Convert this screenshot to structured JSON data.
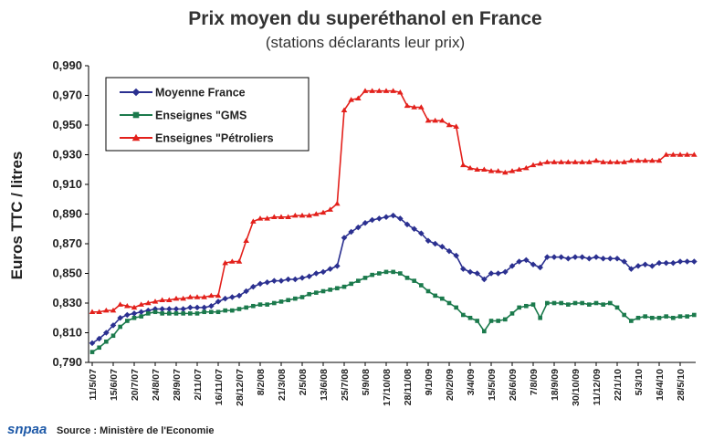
{
  "chart_data": {
    "type": "line",
    "title": "Prix moyen du superéthanol en France",
    "subtitle": "(stations déclarants leur prix)",
    "ylabel": "Euros TTC / litres",
    "source": "Source : Ministère de l'Economie",
    "logo": "snpaa",
    "categories": [
      "11/5/07",
      null,
      null,
      "15/6/07",
      null,
      null,
      "20/7/07",
      null,
      null,
      "24/8/07",
      null,
      null,
      "28/9/07",
      null,
      null,
      "2/11/07",
      null,
      null,
      "16/11/07",
      null,
      null,
      "28/12/07",
      null,
      null,
      "8/2/08",
      null,
      null,
      "21/3/08",
      null,
      null,
      "2/5/08",
      null,
      null,
      "13/6/08",
      null,
      null,
      "25/7/08",
      null,
      null,
      "5/9/08",
      null,
      null,
      "17/10/08",
      null,
      null,
      "28/11/08",
      null,
      null,
      "9/1/09",
      null,
      null,
      "20/2/09",
      null,
      null,
      "3/4/09",
      null,
      null,
      "15/5/09",
      null,
      null,
      "26/6/09",
      null,
      null,
      "7/8/09",
      null,
      null,
      "18/9/09",
      null,
      null,
      "30/10/09",
      null,
      null,
      "11/12/09",
      null,
      null,
      "22/1/10",
      null,
      null,
      "5/3/10",
      null,
      null,
      "16/4/10",
      null,
      null,
      "28/5/10",
      null,
      null
    ],
    "series": [
      {
        "name": "Moyenne France",
        "color": "#2b3090",
        "marker": "diamond",
        "values": [
          0.803,
          0.806,
          0.81,
          0.815,
          0.82,
          0.822,
          0.823,
          0.824,
          0.825,
          0.826,
          0.826,
          0.826,
          0.826,
          0.826,
          0.827,
          0.827,
          0.827,
          0.828,
          0.831,
          0.833,
          0.834,
          0.835,
          0.838,
          0.841,
          0.843,
          0.844,
          0.845,
          0.845,
          0.846,
          0.846,
          0.847,
          0.848,
          0.85,
          0.851,
          0.853,
          0.855,
          0.874,
          0.878,
          0.881,
          0.884,
          0.886,
          0.887,
          0.888,
          0.889,
          0.887,
          0.883,
          0.88,
          0.877,
          0.872,
          0.87,
          0.868,
          0.865,
          0.862,
          0.853,
          0.851,
          0.85,
          0.846,
          0.85,
          0.85,
          0.851,
          0.855,
          0.858,
          0.859,
          0.856,
          0.854,
          0.861,
          0.861,
          0.861,
          0.86,
          0.861,
          0.861,
          0.86,
          0.861,
          0.86,
          0.86,
          0.86,
          0.858,
          0.853,
          0.855,
          0.856,
          0.855,
          0.857,
          0.857,
          0.857,
          0.858,
          0.858,
          0.858
        ]
      },
      {
        "name": "Enseignes \"GMS",
        "color": "#1b7a4c",
        "marker": "square",
        "values": [
          0.797,
          0.8,
          0.804,
          0.808,
          0.814,
          0.818,
          0.82,
          0.821,
          0.823,
          0.824,
          0.823,
          0.823,
          0.823,
          0.823,
          0.823,
          0.823,
          0.824,
          0.824,
          0.824,
          0.825,
          0.825,
          0.826,
          0.827,
          0.828,
          0.829,
          0.829,
          0.83,
          0.831,
          0.832,
          0.833,
          0.834,
          0.836,
          0.837,
          0.838,
          0.839,
          0.84,
          0.841,
          0.843,
          0.845,
          0.847,
          0.849,
          0.85,
          0.851,
          0.851,
          0.85,
          0.847,
          0.845,
          0.842,
          0.838,
          0.835,
          0.833,
          0.83,
          0.827,
          0.822,
          0.82,
          0.818,
          0.811,
          0.818,
          0.818,
          0.819,
          0.823,
          0.827,
          0.828,
          0.829,
          0.82,
          0.83,
          0.83,
          0.83,
          0.829,
          0.83,
          0.83,
          0.829,
          0.83,
          0.829,
          0.83,
          0.827,
          0.822,
          0.818,
          0.82,
          0.821,
          0.82,
          0.82,
          0.821,
          0.82,
          0.821,
          0.821,
          0.822
        ]
      },
      {
        "name": "Enseignes \"Pétroliers",
        "color": "#e3201b",
        "marker": "triangle",
        "values": [
          0.824,
          0.824,
          0.825,
          0.825,
          0.829,
          0.828,
          0.827,
          0.829,
          0.83,
          0.831,
          0.832,
          0.832,
          0.833,
          0.833,
          0.834,
          0.834,
          0.834,
          0.835,
          0.835,
          0.857,
          0.858,
          0.858,
          0.872,
          0.885,
          0.887,
          0.887,
          0.888,
          0.888,
          0.888,
          0.889,
          0.889,
          0.889,
          0.89,
          0.891,
          0.893,
          0.897,
          0.96,
          0.967,
          0.968,
          0.973,
          0.973,
          0.973,
          0.973,
          0.973,
          0.972,
          0.963,
          0.962,
          0.962,
          0.953,
          0.953,
          0.953,
          0.95,
          0.949,
          0.923,
          0.921,
          0.92,
          0.92,
          0.919,
          0.919,
          0.918,
          0.919,
          0.92,
          0.921,
          0.923,
          0.924,
          0.925,
          0.925,
          0.925,
          0.925,
          0.925,
          0.925,
          0.925,
          0.926,
          0.925,
          0.925,
          0.925,
          0.925,
          0.926,
          0.926,
          0.926,
          0.926,
          0.926,
          0.93,
          0.93,
          0.93,
          0.93,
          0.93
        ]
      }
    ],
    "ylim": [
      0.79,
      0.99
    ],
    "yticks": [
      {
        "value": 0.79,
        "label": "0,790"
      },
      {
        "value": 0.81,
        "label": "0,810"
      },
      {
        "value": 0.83,
        "label": "0,830"
      },
      {
        "value": 0.85,
        "label": "0,850"
      },
      {
        "value": 0.87,
        "label": "0,870"
      },
      {
        "value": 0.89,
        "label": "0,890"
      },
      {
        "value": 0.91,
        "label": "0,910"
      },
      {
        "value": 0.93,
        "label": "0,930"
      },
      {
        "value": 0.95,
        "label": "0,950"
      },
      {
        "value": 0.97,
        "label": "0,970"
      },
      {
        "value": 0.99,
        "label": "0,990"
      }
    ],
    "grid": false,
    "legend": "upper left"
  }
}
